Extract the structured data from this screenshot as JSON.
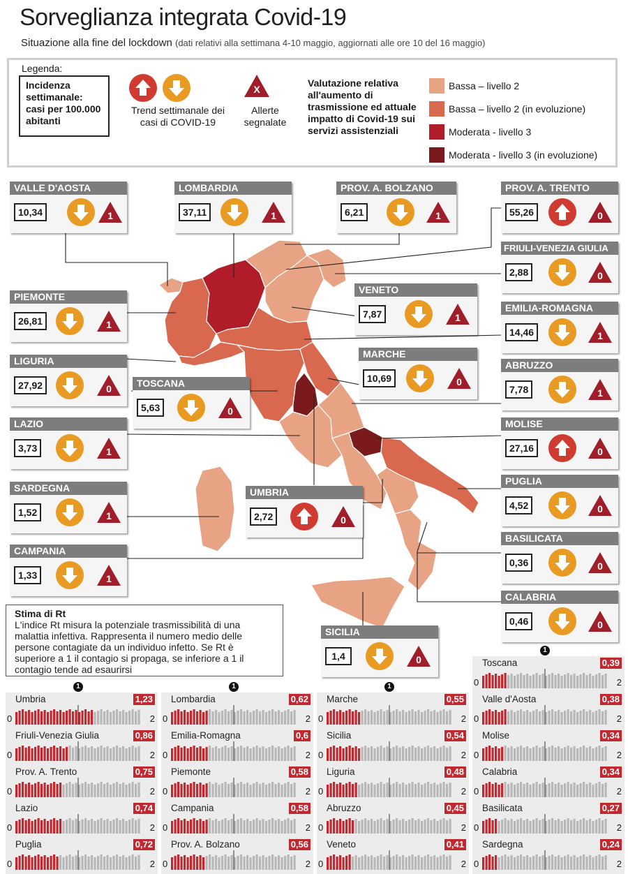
{
  "title": "Sorveglianza integrata Covid-19",
  "subtitle": "Situazione alla fine del lockdown",
  "subtitle_note": "(dati relativi alla settimana 4-10 maggio, aggiornati alle ore 10 del 16 maggio)",
  "legend": {
    "title": "Legenda:",
    "incidence": "Incidenza settimanale: casi per 100.000 abitanti",
    "trend": "Trend settimanale dei casi di COVID-19",
    "alerts": "Allerte segnalate",
    "alert_symbol": "X",
    "evaluation": "Valutazione relativa all'aumento di trasmissione ed attuale impatto di Covid-19 sui servizi assistenziali",
    "levels": [
      {
        "label": "Bassa – livello 2",
        "color": "#e8a284"
      },
      {
        "label": "Bassa – livello 2 (in evoluzione)",
        "color": "#d8694f"
      },
      {
        "label": "Moderata - livello 3",
        "color": "#b01c27"
      },
      {
        "label": "Moderata - livello 3 (in evoluzione)",
        "color": "#7a1a1c"
      }
    ]
  },
  "colors": {
    "trend_down": "#e89a22",
    "trend_up": "#cf3a31",
    "alert": "#a01d2a",
    "header": "#7d7d7d",
    "rt_value": "#c0292f",
    "rt_bar_red": "#c0292f",
    "rt_bar_grey": "#b8b8b8"
  },
  "regions": {
    "valle_daosta": {
      "name": "VALLE D'AOSTA",
      "incidence": "10,34",
      "trend": "down",
      "alerts": "1"
    },
    "lombardia": {
      "name": "LOMBARDIA",
      "incidence": "37,11",
      "trend": "down",
      "alerts": "1"
    },
    "bolzano": {
      "name": "PROV. A. BOLZANO",
      "incidence": "6,21",
      "trend": "down",
      "alerts": "1"
    },
    "trento": {
      "name": "PROV. A. TRENTO",
      "incidence": "55,26",
      "trend": "up",
      "alerts": "0"
    },
    "friuli": {
      "name": "FRIULI-VENEZIA GIULIA",
      "incidence": "2,88",
      "trend": "down",
      "alerts": "0"
    },
    "piemonte": {
      "name": "PIEMONTE",
      "incidence": "26,81",
      "trend": "down",
      "alerts": "1"
    },
    "veneto": {
      "name": "VENETO",
      "incidence": "7,87",
      "trend": "down",
      "alerts": "1"
    },
    "emilia": {
      "name": "EMILIA-ROMAGNA",
      "incidence": "14,46",
      "trend": "down",
      "alerts": "1"
    },
    "liguria": {
      "name": "LIGURIA",
      "incidence": "27,92",
      "trend": "down",
      "alerts": "0"
    },
    "marche": {
      "name": "MARCHE",
      "incidence": "10,69",
      "trend": "down",
      "alerts": "0"
    },
    "toscana": {
      "name": "TOSCANA",
      "incidence": "5,63",
      "trend": "down",
      "alerts": "0"
    },
    "abruzzo": {
      "name": "ABRUZZO",
      "incidence": "7,78",
      "trend": "down",
      "alerts": "1"
    },
    "lazio": {
      "name": "LAZIO",
      "incidence": "3,73",
      "trend": "down",
      "alerts": "1"
    },
    "molise": {
      "name": "MOLISE",
      "incidence": "27,16",
      "trend": "up",
      "alerts": "0"
    },
    "sardegna": {
      "name": "SARDEGNA",
      "incidence": "1,52",
      "trend": "down",
      "alerts": "1"
    },
    "umbria": {
      "name": "UMBRIA",
      "incidence": "2,72",
      "trend": "up",
      "alerts": "0"
    },
    "puglia": {
      "name": "PUGLIA",
      "incidence": "4,52",
      "trend": "down",
      "alerts": "0"
    },
    "basilicata": {
      "name": "BASILICATA",
      "incidence": "0,36",
      "trend": "down",
      "alerts": "0"
    },
    "campania": {
      "name": "CAMPANIA",
      "incidence": "1,33",
      "trend": "down",
      "alerts": "1"
    },
    "calabria": {
      "name": "CALABRIA",
      "incidence": "0,46",
      "trend": "down",
      "alerts": "0"
    },
    "sicilia": {
      "name": "SICILIA",
      "incidence": "1,4",
      "trend": "down",
      "alerts": "0"
    }
  },
  "rt": {
    "title": "Stima di Rt",
    "text": "L'indice Rt misura la potenziale trasmissibilità di una malattia infettiva. Rappresenta il numero medio delle persone contagiate da un individuo infetto. Se Rt è superiore a 1 il contagio si propaga, se inferiore a 1 il contagio tende ad esaurirsi",
    "threshold_label": "1",
    "axis_min": "0",
    "axis_max": "2"
  },
  "chart_data": {
    "type": "bar",
    "title": "Stima di Rt",
    "xlim": [
      0,
      2
    ],
    "threshold": 1,
    "categories": [
      "Umbria",
      "Friuli-Venezia Giulia",
      "Prov. A. Trento",
      "Lazio",
      "Puglia",
      "Lombardia",
      "Emilia-Romagna",
      "Piemonte",
      "Campania",
      "Prov. A. Bolzano",
      "Marche",
      "Sicilia",
      "Liguria",
      "Abruzzo",
      "Veneto",
      "Toscana",
      "Valle d'Aosta",
      "Molise",
      "Calabria",
      "Basilicata",
      "Sardegna"
    ],
    "values": [
      1.23,
      0.86,
      0.75,
      0.74,
      0.72,
      0.62,
      0.6,
      0.58,
      0.58,
      0.56,
      0.55,
      0.54,
      0.48,
      0.45,
      0.41,
      0.39,
      0.38,
      0.34,
      0.34,
      0.27,
      0.24
    ],
    "labels": [
      "1,23",
      "0,86",
      "0,75",
      "0,74",
      "0,72",
      "0,62",
      "0,6",
      "0,58",
      "0,58",
      "0,56",
      "0,55",
      "0,54",
      "0,48",
      "0,45",
      "0,41",
      "0,39",
      "0,38",
      "0,34",
      "0,34",
      "0,27",
      "0,24"
    ]
  }
}
